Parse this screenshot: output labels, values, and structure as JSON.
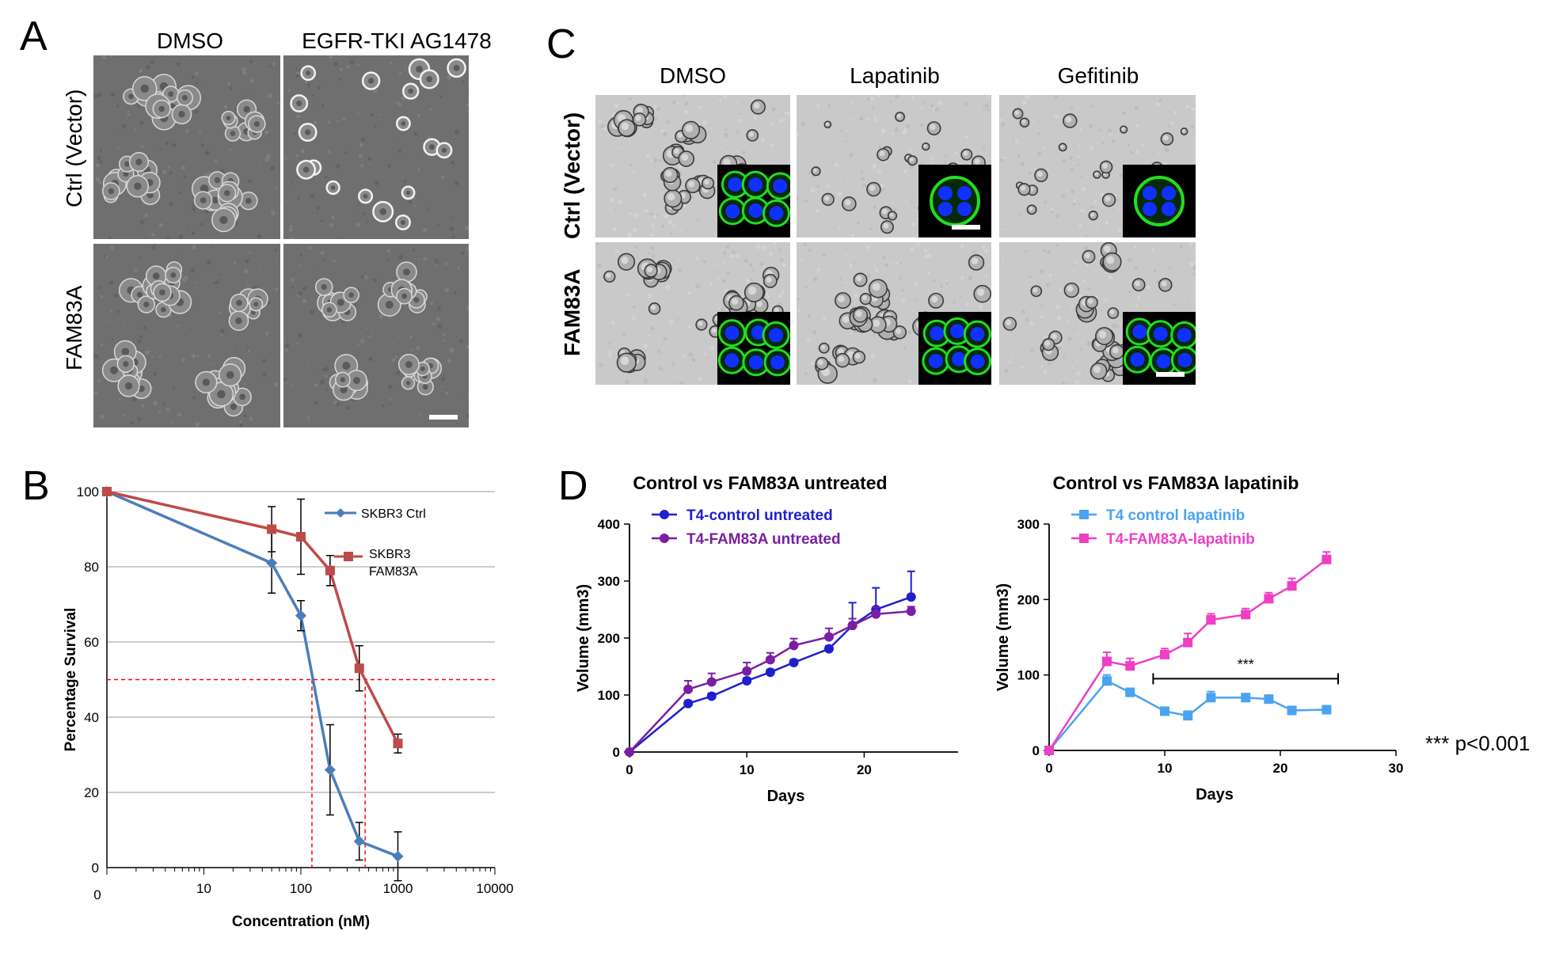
{
  "panels": {
    "A": {
      "letter": "A",
      "columns": [
        "DMSO",
        "EGFR-TKI AG1478"
      ],
      "rows": [
        "Ctrl (Vector)",
        "FAM83A"
      ]
    },
    "B": {
      "letter": "B"
    },
    "C": {
      "letter": "C",
      "columns": [
        "DMSO",
        "Lapatinib",
        "Gefitinib"
      ],
      "rows": [
        "Ctrl (Vector)",
        "FAM83A"
      ]
    },
    "D": {
      "letter": "D",
      "pvalue_note": "*** p<0.001"
    }
  },
  "colors": {
    "ctrl_blue": "#4a7ebb",
    "fam83a_red": "#be4b48",
    "ref_red": "#ff0000",
    "navy": "#1f1fcf",
    "purple": "#7a1fa2",
    "light_blue": "#4aa3f0",
    "magenta": "#ee3fc5",
    "gfp": "#22dd22",
    "dapi": "#1030ff"
  },
  "chart_data": [
    {
      "id": "B",
      "type": "line",
      "title": "",
      "xlabel": "Concentration (nM)",
      "ylabel": "Percentage  Survival",
      "xscale": "log",
      "xlim": [
        1,
        10000
      ],
      "ylim": [
        0,
        100
      ],
      "x_ticks": [
        "0",
        "10",
        "100",
        "1000",
        "10000"
      ],
      "y_ticks": [
        0,
        20,
        40,
        60,
        80,
        100
      ],
      "grid": "horizontal",
      "legend": "top-right",
      "series": [
        {
          "name": "SKBR3 Ctrl",
          "marker": "diamond",
          "x": [
            1,
            50,
            100,
            200,
            400,
            1000
          ],
          "y": [
            100,
            81,
            67,
            26,
            7,
            3
          ],
          "err": [
            0,
            8,
            4,
            12,
            5,
            6.5
          ]
        },
        {
          "name": "SKBR3 FAM83A",
          "marker": "square",
          "x": [
            1,
            50,
            100,
            200,
            400,
            1000
          ],
          "y": [
            100,
            90,
            88,
            79,
            53,
            33
          ],
          "err": [
            0,
            6,
            10,
            4,
            6,
            2.5
          ]
        }
      ],
      "reference_lines": {
        "y": 50,
        "x": [
          130,
          460
        ]
      }
    },
    {
      "id": "D-left",
      "type": "line",
      "title": "Control vs FAM83A untreated",
      "xlabel": "Days",
      "ylabel": "Volume (mm3)",
      "xlim": [
        0,
        28
      ],
      "ylim": [
        0,
        400
      ],
      "x_ticks": [
        0,
        10,
        20
      ],
      "y_ticks": [
        0,
        100,
        200,
        300,
        400
      ],
      "legend": "top-left",
      "series": [
        {
          "name": "T4-control untreated",
          "marker": "circle",
          "x": [
            0,
            5,
            7,
            10,
            12,
            14,
            17,
            19,
            21,
            24
          ],
          "y": [
            0,
            85,
            98,
            125,
            140,
            157,
            181,
            222,
            250,
            272
          ],
          "err": [
            0,
            5,
            5,
            5,
            5,
            5,
            5,
            40,
            38,
            45
          ]
        },
        {
          "name": "T4-FAM83A untreated",
          "marker": "circle",
          "x": [
            0,
            5,
            7,
            10,
            12,
            14,
            17,
            19,
            21,
            24
          ],
          "y": [
            0,
            110,
            123,
            142,
            162,
            187,
            202,
            222,
            242,
            247
          ],
          "err": [
            0,
            15,
            15,
            15,
            12,
            12,
            15,
            12,
            12,
            8
          ]
        }
      ]
    },
    {
      "id": "D-right",
      "type": "line",
      "title": "Control vs FAM83A lapatinib",
      "xlabel": "Days",
      "ylabel": "Volume (mm3)",
      "xlim": [
        0,
        30
      ],
      "ylim": [
        0,
        300
      ],
      "x_ticks": [
        0,
        10,
        20,
        30
      ],
      "y_ticks": [
        0,
        100,
        200,
        300
      ],
      "legend": "top-left",
      "series": [
        {
          "name": "T4 control lapatinib",
          "marker": "square",
          "x": [
            0,
            5,
            7,
            10,
            12,
            14,
            17,
            19,
            21,
            24
          ],
          "y": [
            0,
            92,
            77,
            52,
            46,
            70,
            70,
            68,
            53,
            54
          ],
          "err": [
            0,
            8,
            5,
            5,
            6,
            8,
            4,
            4,
            3,
            4
          ]
        },
        {
          "name": "T4-FAM83A-lapatinib",
          "marker": "square",
          "x": [
            0,
            5,
            7,
            10,
            12,
            14,
            17,
            19,
            21,
            24
          ],
          "y": [
            0,
            118,
            112,
            127,
            143,
            173,
            180,
            201,
            218,
            253
          ],
          "err": [
            0,
            12,
            10,
            8,
            12,
            8,
            8,
            8,
            10,
            10
          ]
        }
      ],
      "significance": {
        "label": "***",
        "x_from": 9,
        "x_to": 25,
        "y": 95
      }
    }
  ]
}
